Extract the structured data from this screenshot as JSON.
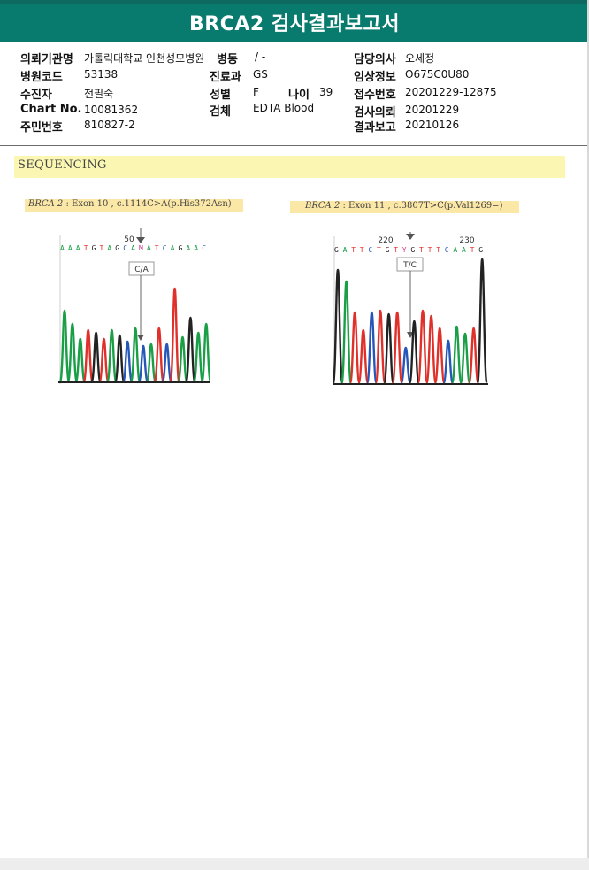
{
  "title": "BRCA2 검사결과보고서",
  "info": {
    "institution_label": "의뢰기관명",
    "institution": "가톨릭대학교 인천성모병원",
    "ward_label": "병동",
    "ward": "/ -",
    "doctor_label": "담당의사",
    "doctor": "오세정",
    "hospital_code_label": "병원코드",
    "hospital_code": "53138",
    "department_label": "진료과",
    "department": "GS",
    "clinical_label": "임상정보",
    "clinical": "O675C0U80",
    "patient_label": "수진자",
    "patient": "전필숙",
    "sex_label": "성별",
    "sex": "F",
    "age_label": "나이",
    "age": "39",
    "receipt_label": "접수번호",
    "receipt": "20201229-12875",
    "chart_label": "Chart No.",
    "chart": "10081362",
    "specimen_label": "검체",
    "specimen": "EDTA Blood",
    "request_label": "검사의뢰",
    "request": "20201229",
    "id_label": "주민번호",
    "id": "810827-2",
    "report_label": "결과보고",
    "report": "20210126"
  },
  "section": {
    "title": "SEQUENCING"
  },
  "variants": [
    {
      "gene": "BRCA 2",
      "detail": " : Exon 10 , c.1114C>A(p.His372Asn)",
      "position": "50",
      "sequence": "AAATGTAGCAMATCAGAAC",
      "call": "C/A"
    },
    {
      "gene": "BRCA 2",
      "detail": " : Exon 11 , c.3807T>C(p.Val1269=)",
      "position_left": "220",
      "position_right": "230",
      "sequence": "GATTCTGTYGTTTCAATG",
      "call": "T/C"
    }
  ],
  "colors": {
    "header": "#097a6e",
    "band_yellow": "#fbf7b3",
    "base_A": "#1a9e46",
    "base_C": "#2656b8",
    "base_G": "#222222",
    "base_T": "#e0302a"
  }
}
